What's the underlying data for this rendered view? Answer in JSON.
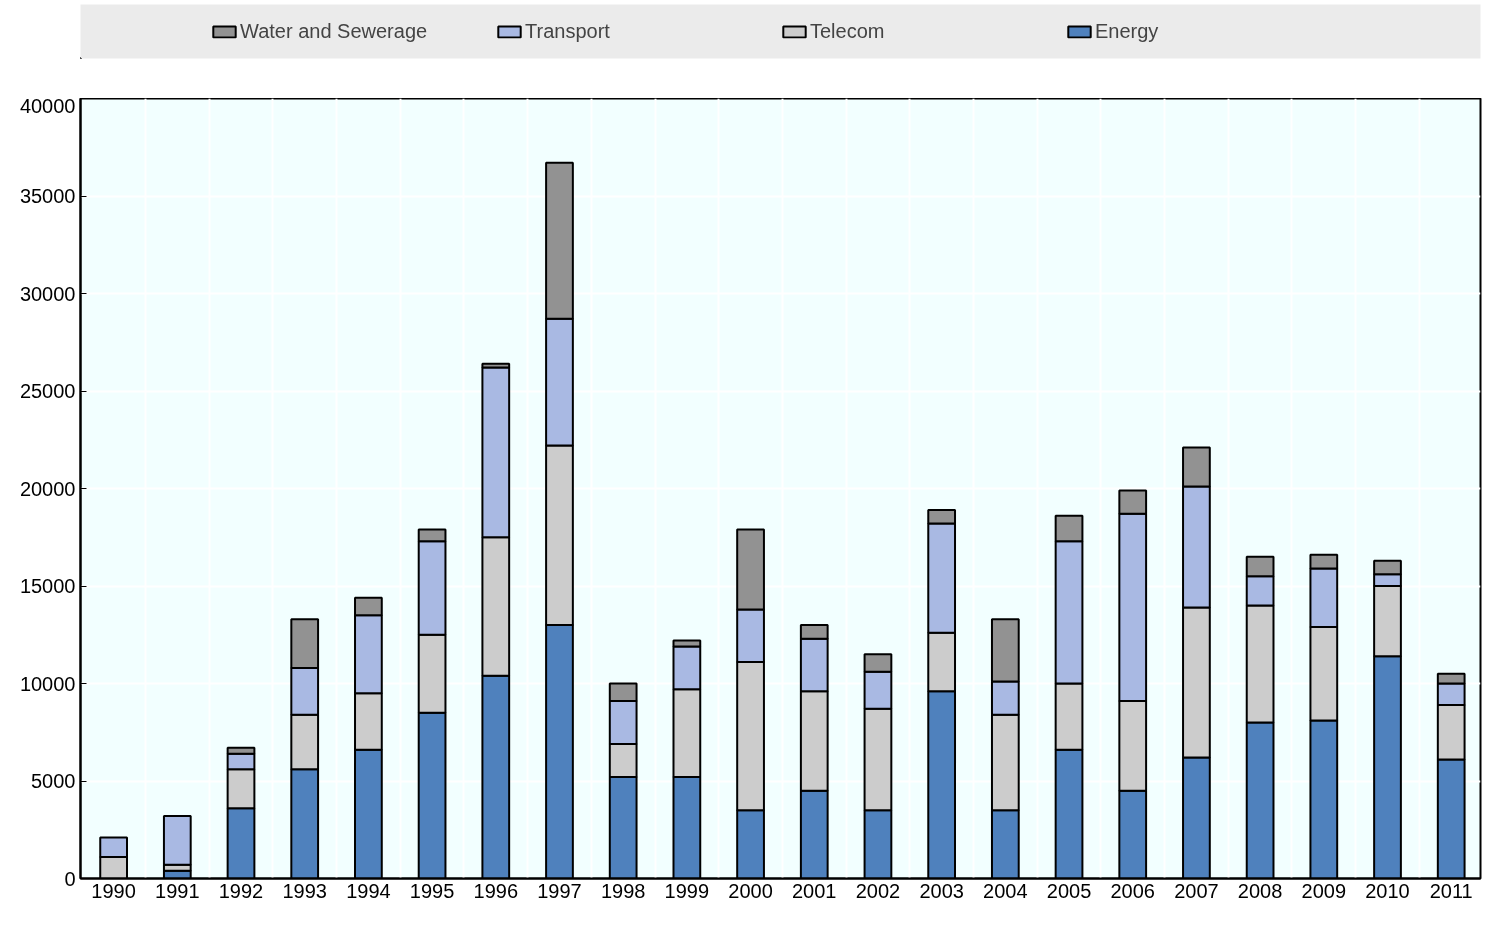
{
  "chart_data": {
    "type": "bar",
    "stacked": true,
    "categories": [
      "1990",
      "1991",
      "1992",
      "1993",
      "1994",
      "1995",
      "1996",
      "1997",
      "1998",
      "1999",
      "2000",
      "2001",
      "2002",
      "2003",
      "2004",
      "2005",
      "2006",
      "2007",
      "2008",
      "2009",
      "2010",
      "2011"
    ],
    "series": [
      {
        "name": "Energy",
        "color": "#4f81bd",
        "values": [
          null,
          400,
          3600,
          5600,
          6600,
          8500,
          10400,
          13000,
          5200,
          5200,
          3500,
          4500,
          3500,
          9600,
          3500,
          6600,
          4500,
          6200,
          8000,
          8100,
          11400,
          6100
        ]
      },
      {
        "name": "Telecom",
        "color": "#cccccc",
        "values": [
          1100,
          300,
          2000,
          2800,
          2900,
          4000,
          7100,
          9200,
          1700,
          4500,
          7600,
          5100,
          5200,
          3000,
          4900,
          3400,
          4600,
          7700,
          6000,
          4800,
          3600,
          2800
        ]
      },
      {
        "name": "Transport",
        "color": "#a9b9e3",
        "values": [
          1000,
          2500,
          800,
          2400,
          4000,
          4800,
          8700,
          6500,
          2200,
          2200,
          2700,
          2700,
          1900,
          5600,
          1700,
          7300,
          9600,
          6200,
          1500,
          3000,
          600,
          1100
        ]
      },
      {
        "name": "Water and Sewerage",
        "color": "#929292",
        "values": [
          null,
          null,
          300,
          2500,
          900,
          600,
          200,
          8000,
          900,
          300,
          4100,
          700,
          900,
          700,
          3200,
          1300,
          1200,
          2000,
          1000,
          700,
          700,
          500
        ]
      }
    ],
    "ylim": [
      0,
      40000
    ],
    "yticks": [
      0,
      5000,
      10000,
      15000,
      20000,
      25000,
      30000,
      35000,
      40000
    ],
    "grid": true,
    "legend": "top"
  }
}
